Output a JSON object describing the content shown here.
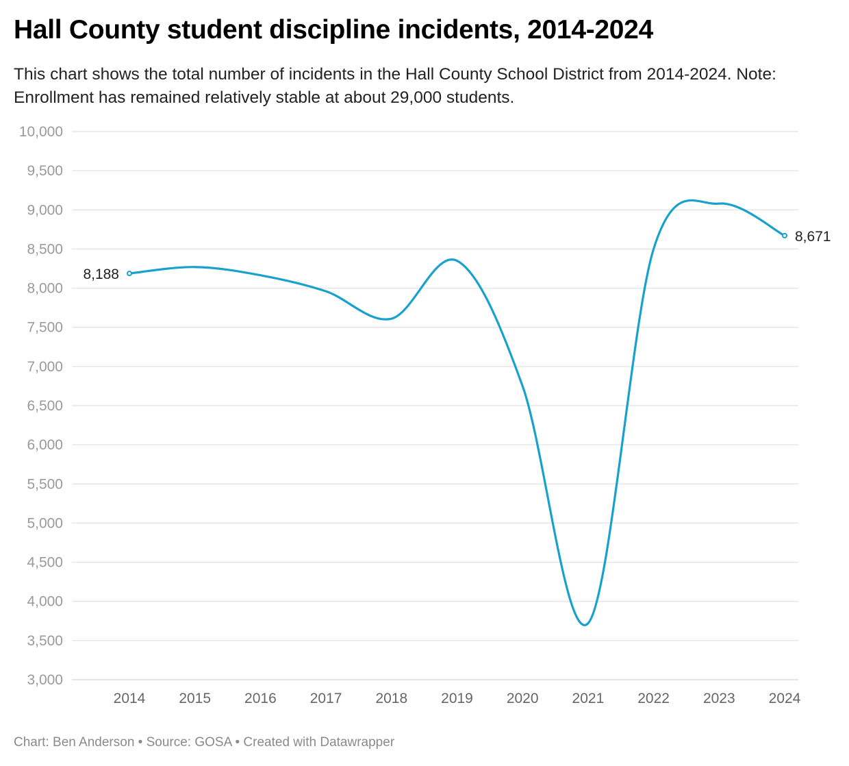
{
  "title": "Hall County student discipline incidents, 2014-2024",
  "subtitle": "This chart shows the total number of incidents in the Hall County School District from 2014-2024. Note: Enrollment has remained relatively stable at about 29,000 students.",
  "footer": "Chart: Ben Anderson • Source: GOSA • Created with Datawrapper",
  "colors": {
    "line": "#18a1cd",
    "grid": "#e6e6e6"
  },
  "chart_data": {
    "type": "line",
    "title": "Hall County student discipline incidents, 2014-2024",
    "xlabel": "",
    "ylabel": "",
    "x": [
      2014,
      2015,
      2016,
      2017,
      2018,
      2019,
      2020,
      2021,
      2022,
      2023,
      2024
    ],
    "series": [
      {
        "values": [
          8188,
          8270,
          8165,
          7960,
          7610,
          8350,
          6750,
          3720,
          8500,
          9080,
          8671
        ]
      }
    ],
    "ylim": [
      3000,
      10000
    ],
    "yticks": [
      3000,
      3500,
      4000,
      4500,
      5000,
      5500,
      6000,
      6500,
      7000,
      7500,
      8000,
      8500,
      9000,
      9500,
      10000
    ],
    "ytick_labels": [
      "3,000",
      "3,500",
      "4,000",
      "4,500",
      "5,000",
      "5,500",
      "6,000",
      "6,500",
      "7,000",
      "7,500",
      "8,000",
      "8,500",
      "9,000",
      "9,500",
      "10,000"
    ],
    "xtick_labels": [
      "2014",
      "2015",
      "2016",
      "2017",
      "2018",
      "2019",
      "2020",
      "2021",
      "2022",
      "2023",
      "2024"
    ],
    "annotations": [
      {
        "x": 2014,
        "label": "8,188"
      },
      {
        "x": 2024,
        "label": "8,671"
      }
    ],
    "grid": true,
    "curve": "smooth"
  }
}
